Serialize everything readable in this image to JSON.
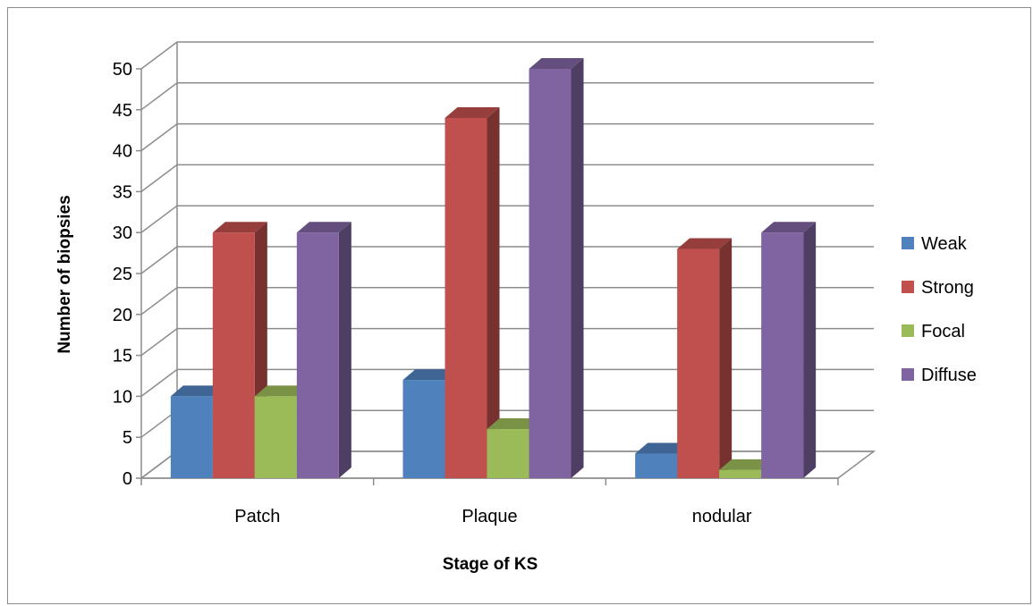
{
  "chart_data": {
    "type": "bar",
    "title": "",
    "xlabel": "Stage of KS",
    "ylabel": "Number of biopsies",
    "categories": [
      "Patch",
      "Plaque",
      "nodular"
    ],
    "series": [
      {
        "name": "Weak",
        "values": [
          10,
          12,
          3
        ],
        "color": "#4f81bd"
      },
      {
        "name": "Strong",
        "values": [
          30,
          44,
          28
        ],
        "color": "#c0504d"
      },
      {
        "name": "Focal",
        "values": [
          10,
          6,
          1
        ],
        "color": "#9bbb59"
      },
      {
        "name": "Diffuse",
        "values": [
          30,
          50,
          30
        ],
        "color": "#8064a2"
      }
    ],
    "ylim": [
      0,
      50
    ],
    "yticks": [
      "0",
      "5",
      "10",
      "15",
      "20",
      "25",
      "30",
      "35",
      "40",
      "45",
      "50"
    ],
    "grid": true,
    "three_d": true,
    "legend_position": "right"
  }
}
